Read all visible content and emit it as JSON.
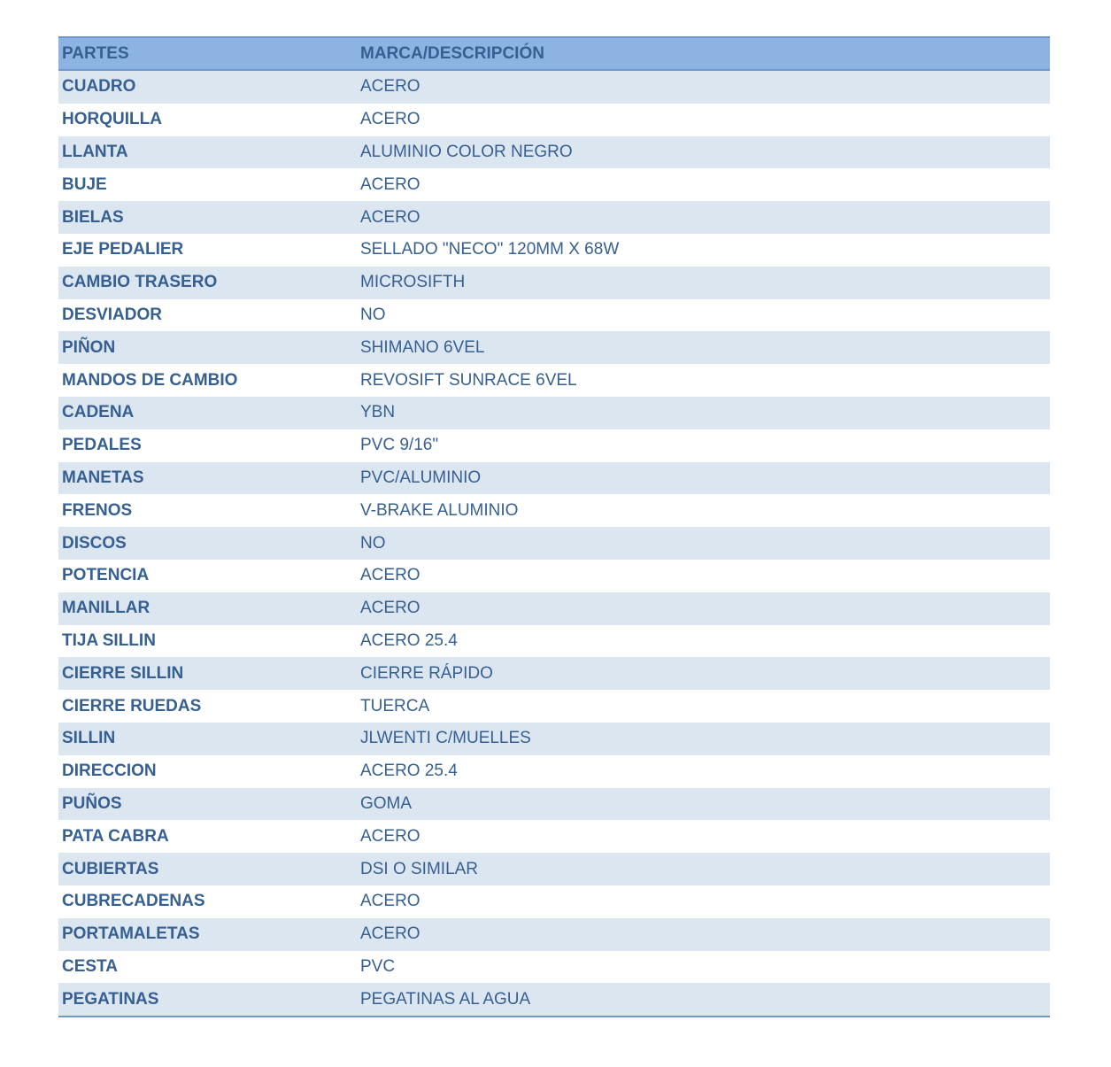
{
  "header": {
    "col1": "PARTES",
    "col2": "MARCA/DESCRIPCIÓN"
  },
  "rows": [
    {
      "part": "CUADRO",
      "desc": "ACERO"
    },
    {
      "part": "HORQUILLA",
      "desc": "ACERO"
    },
    {
      "part": "LLANTA",
      "desc": "ALUMINIO COLOR NEGRO"
    },
    {
      "part": "BUJE",
      "desc": "ACERO"
    },
    {
      "part": "BIELAS",
      "desc": "ACERO"
    },
    {
      "part": "EJE PEDALIER",
      "desc": "SELLADO \"NECO\" 120MM X 68W"
    },
    {
      "part": "CAMBIO TRASERO",
      "desc": "MICROSIFTH"
    },
    {
      "part": "DESVIADOR",
      "desc": "NO"
    },
    {
      "part": "PIÑON",
      "desc": "SHIMANO 6VEL"
    },
    {
      "part": "MANDOS DE CAMBIO",
      "desc": "REVOSIFT SUNRACE 6VEL"
    },
    {
      "part": "CADENA",
      "desc": "YBN"
    },
    {
      "part": "PEDALES",
      "desc": "PVC 9/16\""
    },
    {
      "part": "MANETAS",
      "desc": "PVC/ALUMINIO"
    },
    {
      "part": "FRENOS",
      "desc": "V-BRAKE ALUMINIO"
    },
    {
      "part": "DISCOS",
      "desc": "NO"
    },
    {
      "part": "POTENCIA",
      "desc": "ACERO"
    },
    {
      "part": "MANILLAR",
      "desc": "ACERO"
    },
    {
      "part": "TIJA SILLIN",
      "desc": "ACERO 25.4"
    },
    {
      "part": "CIERRE SILLIN",
      "desc": "CIERRE RÁPIDO"
    },
    {
      "part": "CIERRE RUEDAS",
      "desc": "TUERCA"
    },
    {
      "part": "SILLIN",
      "desc": "JLWENTI C/MUELLES"
    },
    {
      "part": "DIRECCION",
      "desc": "ACERO 25.4"
    },
    {
      "part": "PUÑOS",
      "desc": "GOMA"
    },
    {
      "part": "PATA CABRA",
      "desc": "ACERO"
    },
    {
      "part": "CUBIERTAS",
      "desc": "DSI O SIMILAR"
    },
    {
      "part": "CUBRECADENAS",
      "desc": "ACERO"
    },
    {
      "part": "PORTAMALETAS",
      "desc": "ACERO"
    },
    {
      "part": "CESTA",
      "desc": "PVC"
    },
    {
      "part": "PEGATINAS",
      "desc": "PEGATINAS AL AGUA"
    }
  ],
  "colors": {
    "header_bg": "#8db3e2",
    "stripe_bg": "#dce6f1",
    "text": "#366092",
    "border": "#6f97c9"
  }
}
